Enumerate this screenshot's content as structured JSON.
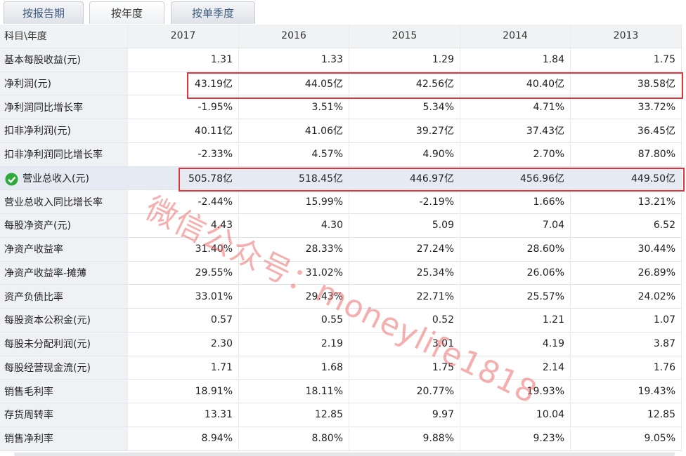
{
  "tabs": [
    "按报告期",
    "按年度",
    "按单季度"
  ],
  "table": {
    "header": [
      "科目\\年度",
      "2017",
      "2016",
      "2015",
      "2014",
      "2013"
    ],
    "rows": [
      [
        "基本每股收益(元)",
        "1.31",
        "1.33",
        "1.29",
        "1.84",
        "1.75"
      ],
      [
        "净利润(元)",
        "43.19亿",
        "44.05亿",
        "42.56亿",
        "40.40亿",
        "38.58亿"
      ],
      [
        "净利润同比增长率",
        "-1.95%",
        "3.51%",
        "5.34%",
        "4.71%",
        "33.72%"
      ],
      [
        "扣非净利润(元)",
        "40.11亿",
        "41.06亿",
        "39.27亿",
        "37.43亿",
        "36.45亿"
      ],
      [
        "扣非净利润同比增长率",
        "-2.33%",
        "4.57%",
        "4.90%",
        "2.70%",
        "87.80%"
      ],
      [
        "营业总收入(元)",
        "505.78亿",
        "518.45亿",
        "446.97亿",
        "456.96亿",
        "449.50亿"
      ],
      [
        "营业总收入同比增长率",
        "-2.44%",
        "15.99%",
        "-2.19%",
        "1.66%",
        "13.21%"
      ],
      [
        "每股净资产(元)",
        "4.43",
        "4.30",
        "5.09",
        "7.04",
        "6.52"
      ],
      [
        "净资产收益率",
        "31.40%",
        "28.33%",
        "27.24%",
        "28.60%",
        "30.44%"
      ],
      [
        "净资产收益率-摊薄",
        "29.55%",
        "31.02%",
        "25.34%",
        "26.06%",
        "26.89%"
      ],
      [
        "资产负债比率",
        "33.01%",
        "29.43%",
        "22.71%",
        "25.57%",
        "24.02%"
      ],
      [
        "每股资本公积金(元)",
        "0.57",
        "0.55",
        "0.52",
        "1.21",
        "1.07"
      ],
      [
        "每股未分配利润(元)",
        "2.30",
        "2.19",
        "3.01",
        "4.19",
        "3.87"
      ],
      [
        "每股经营现金流(元)",
        "1.71",
        "1.68",
        "1.75",
        "2.14",
        "1.76"
      ],
      [
        "销售毛利率",
        "18.91%",
        "18.11%",
        "20.77%",
        "19.93%",
        "19.43%"
      ],
      [
        "存货周转率",
        "13.31",
        "12.85",
        "9.97",
        "10.04",
        "12.85"
      ],
      [
        "销售净利率",
        "8.94%",
        "8.80%",
        "9.88%",
        "9.23%",
        "9.05%"
      ]
    ]
  },
  "watermark": "微信公众号：moneylife1818"
}
